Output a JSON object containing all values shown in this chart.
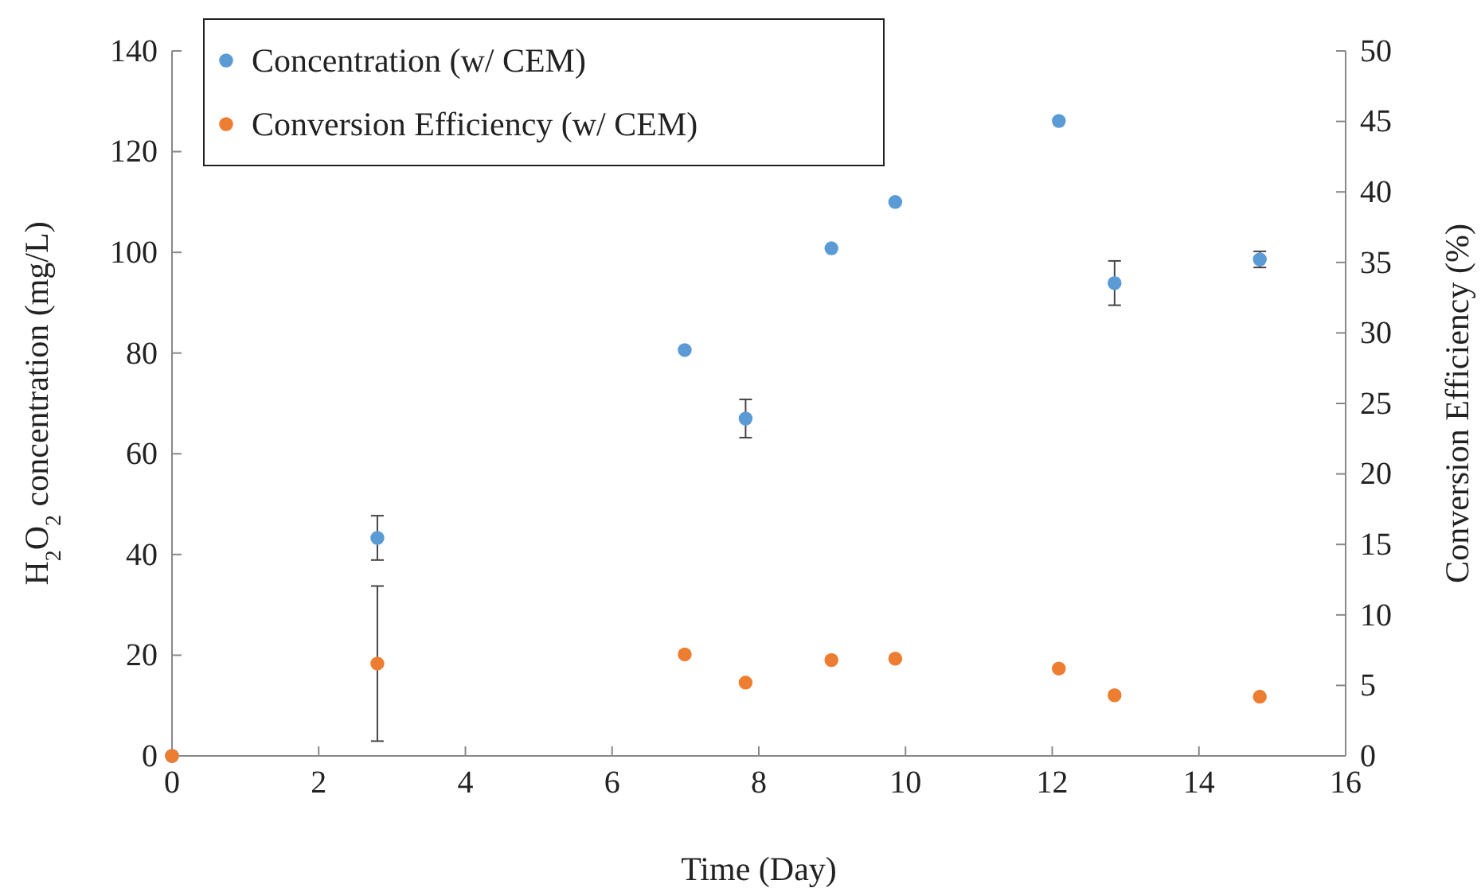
{
  "chart_data": {
    "type": "scatter",
    "xlabel": "Time (Day)",
    "ylabel": "H$_{2}$O$_{2}$ concentration (mg/L)",
    "y2label": "Conversion Efficiency (%)",
    "xlim": [
      0,
      16
    ],
    "xticks": [
      0,
      2,
      4,
      6,
      8,
      10,
      12,
      14,
      16
    ],
    "ylim": [
      0,
      140
    ],
    "yticks": [
      0,
      20,
      40,
      60,
      80,
      100,
      120,
      140
    ],
    "y2lim": [
      0,
      50
    ],
    "y2ticks": [
      0,
      5,
      10,
      15,
      20,
      25,
      30,
      35,
      40,
      45,
      50
    ],
    "x": [
      0,
      2.8,
      6.99,
      7.82,
      8.99,
      9.86,
      12.09,
      12.85,
      14.83
    ],
    "series": [
      {
        "name": "Concentration (w/ CEM)",
        "color": "#5b9bd5",
        "values": [
          0,
          43.3,
          80.6,
          67.0,
          100.8,
          110,
          126.1,
          93.9,
          98.6
        ],
        "errors": [
          null,
          4.4,
          null,
          3.8,
          null,
          null,
          null,
          4.4,
          1.6
        ]
      },
      {
        "name": "Conversion Efficiency (w/ CEM)",
        "color": "#ed7d31",
        "axis": "y2",
        "values": [
          0,
          6.55,
          7.2,
          5.2,
          6.8,
          6.9,
          6.2,
          4.3,
          4.2
        ],
        "errors": [
          null,
          5.5,
          null,
          null,
          null,
          null,
          null,
          null,
          null
        ]
      }
    ],
    "legend": "top left",
    "marker": "circle",
    "grid": false
  }
}
